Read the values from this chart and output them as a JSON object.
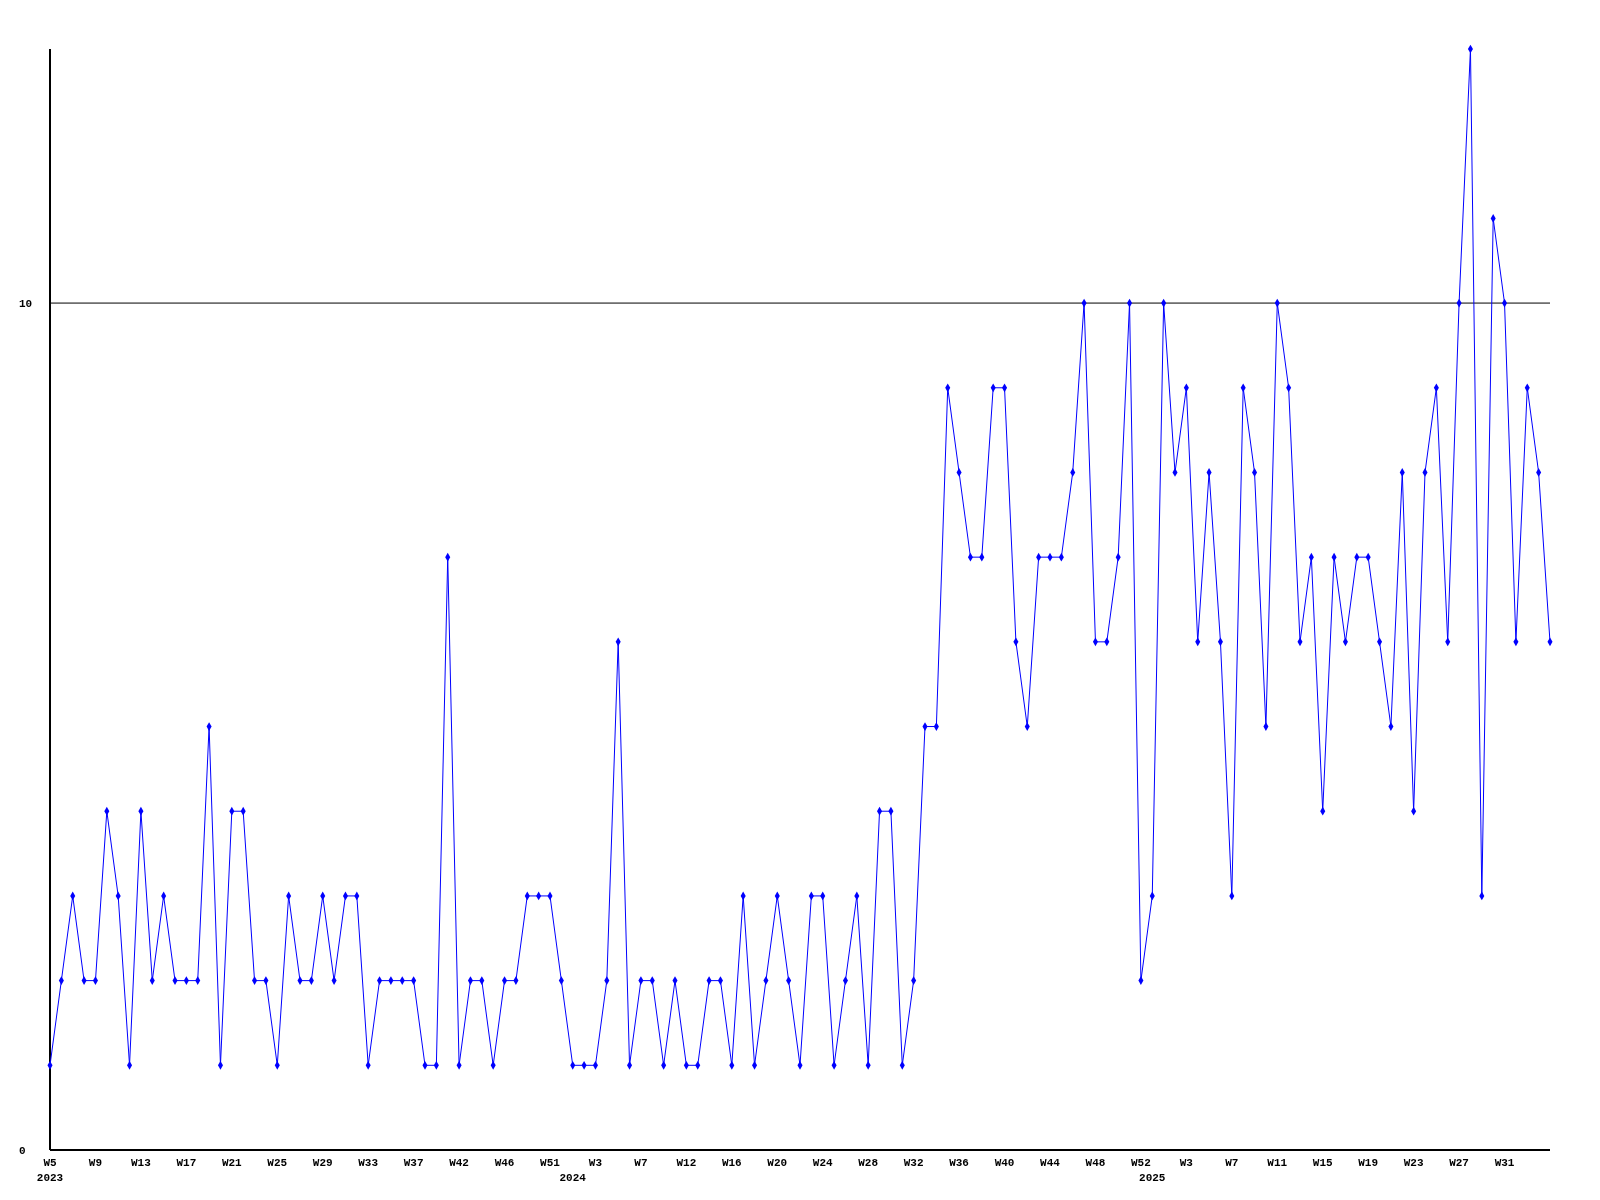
{
  "chart_data": {
    "type": "line",
    "categories": [
      "W5\n2023",
      null,
      null,
      null,
      "W9",
      null,
      null,
      null,
      "W13",
      null,
      null,
      null,
      "W17",
      null,
      null,
      null,
      "W21",
      null,
      null,
      null,
      "W25",
      null,
      null,
      null,
      "W29",
      null,
      null,
      null,
      "W33",
      null,
      null,
      null,
      "W37",
      null,
      null,
      null,
      "W42",
      null,
      null,
      null,
      "W46",
      null,
      null,
      null,
      "W51",
      null,
      "\n2024",
      null,
      "W3",
      null,
      null,
      null,
      "W7",
      null,
      null,
      null,
      "W12",
      null,
      null,
      null,
      "W16",
      null,
      null,
      null,
      "W20",
      null,
      null,
      null,
      "W24",
      null,
      null,
      null,
      "W28",
      null,
      null,
      null,
      "W32",
      null,
      null,
      null,
      "W36",
      null,
      null,
      null,
      "W40",
      null,
      null,
      null,
      "W44",
      null,
      null,
      null,
      "W48",
      null,
      null,
      null,
      "W52",
      "\n2025",
      null,
      null,
      "W3",
      null,
      null,
      null,
      "W7",
      null,
      null,
      null,
      "W11",
      null,
      null,
      null,
      "W15",
      null,
      null,
      null,
      "W19",
      null,
      null,
      null,
      "W23",
      null,
      null,
      null,
      "W27",
      null,
      null,
      null,
      "W31",
      null,
      null,
      null,
      null
    ],
    "values": [
      1,
      2,
      3,
      2,
      2,
      4,
      3,
      1,
      4,
      2,
      3,
      2,
      2,
      2,
      5,
      1,
      4,
      4,
      2,
      2,
      1,
      3,
      2,
      2,
      3,
      2,
      3,
      3,
      1,
      2,
      2,
      2,
      2,
      1,
      1,
      7,
      1,
      2,
      2,
      1,
      2,
      2,
      3,
      3,
      3,
      2,
      1,
      1,
      1,
      2,
      6,
      1,
      2,
      2,
      1,
      2,
      1,
      1,
      2,
      2,
      1,
      3,
      1,
      2,
      3,
      2,
      1,
      3,
      3,
      1,
      2,
      3,
      1,
      4,
      4,
      1,
      2,
      5,
      5,
      9,
      8,
      7,
      7,
      9,
      9,
      6,
      5,
      7,
      7,
      7,
      8,
      10,
      6,
      6,
      7,
      10,
      2,
      3,
      10,
      8,
      9,
      6,
      8,
      6,
      3,
      9,
      8,
      5,
      10,
      9,
      6,
      7,
      4,
      7,
      6,
      7,
      7,
      6,
      5,
      8,
      4,
      8,
      9,
      6,
      10,
      13,
      3,
      11,
      10,
      6,
      9,
      8,
      6
    ],
    "color": "#0000ff",
    "marker": "diamond",
    "line_style": "solid",
    "ylim": [
      0,
      13
    ],
    "yticks": [
      0,
      10
    ],
    "grid": "y"
  }
}
